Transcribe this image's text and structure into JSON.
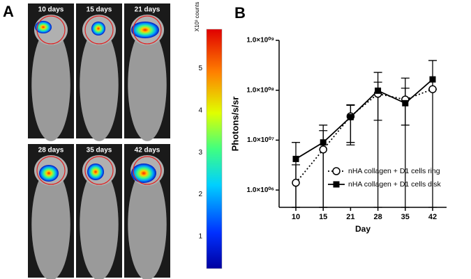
{
  "panels": {
    "a": {
      "letter": "A",
      "images": [
        "10 days",
        "15 days",
        "21 days",
        "28 days",
        "35 days",
        "42 days"
      ],
      "colorbar": {
        "label": "X10³ counts",
        "range": [
          0.24,
          5.93
        ],
        "ticks": [
          1,
          2,
          3,
          4,
          5
        ]
      }
    },
    "b": {
      "letter": "B"
    }
  },
  "chart_data": {
    "type": "line",
    "x_label": "Day",
    "y_label": "Photons/s/sr",
    "log_y": true,
    "categories": [
      "10",
      "15",
      "21",
      "28",
      "35",
      "42"
    ],
    "ylim": [
      450000,
      1000000000
    ],
    "yticks": [
      {
        "value": 1000000,
        "label": "1.0×10⁰⁶"
      },
      {
        "value": 10000000,
        "label": "1.0×10⁰⁷"
      },
      {
        "value": 100000000,
        "label": "1.0×10⁰⁸"
      },
      {
        "value": 1000000000,
        "label": "1.0×10⁰⁹"
      }
    ],
    "legend": "lower-right",
    "series": [
      {
        "name": "nHA collagen + D1 cells ring",
        "color": "#000000",
        "marker": "open-circle",
        "dash": "dotted",
        "values": [
          1400000,
          6500000,
          30000000,
          85000000,
          65000000,
          105000000
        ],
        "errors": [
          1800000,
          9000000,
          21000000,
          60000000,
          45000000,
          0
        ]
      },
      {
        "name": "nHA collagen + D1 cells disk",
        "color": "#000000",
        "marker": "filled-square",
        "dash": "solid",
        "values": [
          4200000,
          9000000,
          29000000,
          98000000,
          55000000,
          165000000
        ],
        "errors": [
          4800000,
          11000000,
          21000000,
          130000000,
          120000000,
          230000000
        ]
      }
    ]
  }
}
